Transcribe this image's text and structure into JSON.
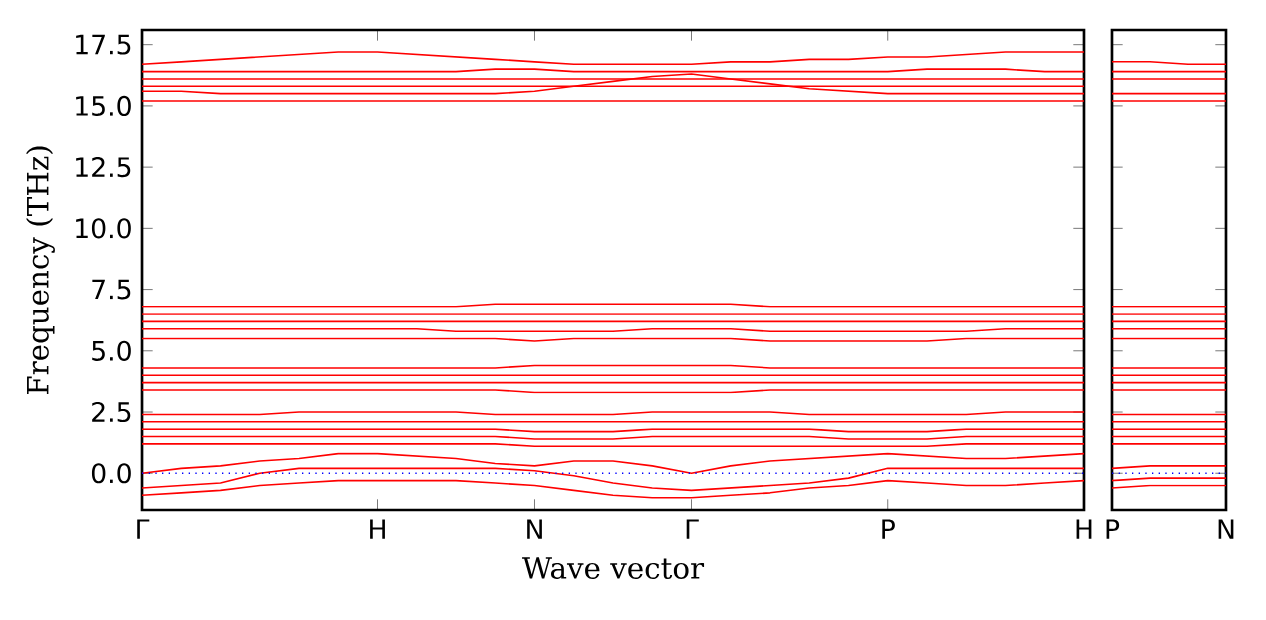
{
  "chart_data": [
    {
      "type": "line",
      "xlabel": "Wave vector",
      "ylabel": "Frequency (THz)",
      "categories": [
        "Γ",
        null,
        null,
        null,
        null,
        null,
        "H",
        null,
        null,
        null,
        "N",
        null,
        null,
        null,
        "Γ",
        null,
        null,
        null,
        null,
        "P",
        null,
        null,
        null,
        null,
        "H"
      ],
      "ylim": [
        -1.5,
        18.1
      ],
      "yticks": [
        {
          "value": 0,
          "label": "0.0"
        },
        {
          "value": 2.5,
          "label": "2.5"
        },
        {
          "value": 5,
          "label": "5.0"
        },
        {
          "value": 7.5,
          "label": "7.5"
        },
        {
          "value": 10,
          "label": "10.0"
        },
        {
          "value": 12.5,
          "label": "12.5"
        },
        {
          "value": 15,
          "label": "15.0"
        },
        {
          "value": 17.5,
          "label": "17.5"
        }
      ],
      "line_style": "solid",
      "marker": "none",
      "ref_lines": [
        {
          "axis": "y",
          "value": 0,
          "color": "#0000ff",
          "line_style": "dotted"
        }
      ],
      "series": [
        {
          "color": "#ff0000",
          "values": [
            16.7,
            16.8,
            16.9,
            17.0,
            17.1,
            17.2,
            17.2,
            17.1,
            17.0,
            16.9,
            16.8,
            16.7,
            16.7,
            16.7,
            16.7,
            16.8,
            16.8,
            16.9,
            16.9,
            17.0,
            17.0,
            17.1,
            17.2,
            17.2,
            17.2
          ]
        },
        {
          "color": "#ff0000",
          "values": [
            16.4,
            16.4,
            16.4,
            16.4,
            16.4,
            16.4,
            16.4,
            16.4,
            16.4,
            16.5,
            16.5,
            16.4,
            16.4,
            16.4,
            16.4,
            16.4,
            16.4,
            16.4,
            16.4,
            16.4,
            16.5,
            16.5,
            16.5,
            16.4,
            16.4
          ]
        },
        {
          "color": "#ff0000",
          "values": [
            16.1,
            16.1,
            16.1,
            16.1,
            16.1,
            16.1,
            16.1,
            16.1,
            16.1,
            16.1,
            16.1,
            16.1,
            16.1,
            16.1,
            16.1,
            16.1,
            16.1,
            16.1,
            16.1,
            16.1,
            16.1,
            16.1,
            16.1,
            16.1,
            16.1
          ]
        },
        {
          "color": "#ff0000",
          "values": [
            15.8,
            15.8,
            15.8,
            15.8,
            15.8,
            15.8,
            15.8,
            15.8,
            15.8,
            15.8,
            15.8,
            15.8,
            15.8,
            15.8,
            15.8,
            15.8,
            15.8,
            15.8,
            15.8,
            15.8,
            15.8,
            15.8,
            15.8,
            15.8,
            15.8
          ]
        },
        {
          "color": "#ff0000",
          "values": [
            15.6,
            15.6,
            15.5,
            15.5,
            15.5,
            15.5,
            15.5,
            15.5,
            15.5,
            15.5,
            15.6,
            15.8,
            16.0,
            16.2,
            16.3,
            16.1,
            15.9,
            15.7,
            15.6,
            15.5,
            15.5,
            15.5,
            15.5,
            15.5,
            15.5
          ]
        },
        {
          "color": "#ff0000",
          "values": [
            15.2,
            15.2,
            15.2,
            15.2,
            15.2,
            15.2,
            15.2,
            15.2,
            15.2,
            15.2,
            15.2,
            15.2,
            15.2,
            15.2,
            15.2,
            15.2,
            15.2,
            15.2,
            15.2,
            15.2,
            15.2,
            15.2,
            15.2,
            15.2,
            15.2
          ]
        },
        {
          "color": "#ff0000",
          "values": [
            6.8,
            6.8,
            6.8,
            6.8,
            6.8,
            6.8,
            6.8,
            6.8,
            6.8,
            6.9,
            6.9,
            6.9,
            6.9,
            6.9,
            6.9,
            6.9,
            6.8,
            6.8,
            6.8,
            6.8,
            6.8,
            6.8,
            6.8,
            6.8,
            6.8
          ]
        },
        {
          "color": "#ff0000",
          "values": [
            6.5,
            6.5,
            6.5,
            6.5,
            6.5,
            6.5,
            6.5,
            6.5,
            6.5,
            6.5,
            6.5,
            6.5,
            6.5,
            6.5,
            6.5,
            6.5,
            6.5,
            6.5,
            6.5,
            6.5,
            6.5,
            6.5,
            6.5,
            6.5,
            6.5
          ]
        },
        {
          "color": "#ff0000",
          "values": [
            6.2,
            6.2,
            6.2,
            6.2,
            6.2,
            6.2,
            6.2,
            6.2,
            6.2,
            6.2,
            6.2,
            6.2,
            6.2,
            6.2,
            6.2,
            6.2,
            6.2,
            6.2,
            6.2,
            6.2,
            6.2,
            6.2,
            6.2,
            6.2,
            6.2
          ]
        },
        {
          "color": "#ff0000",
          "values": [
            5.9,
            5.9,
            5.9,
            5.9,
            5.9,
            5.9,
            5.9,
            5.9,
            5.8,
            5.8,
            5.8,
            5.8,
            5.8,
            5.9,
            5.9,
            5.9,
            5.8,
            5.8,
            5.8,
            5.8,
            5.8,
            5.8,
            5.9,
            5.9,
            5.9
          ]
        },
        {
          "color": "#ff0000",
          "values": [
            5.5,
            5.5,
            5.5,
            5.5,
            5.5,
            5.5,
            5.5,
            5.5,
            5.5,
            5.5,
            5.4,
            5.5,
            5.5,
            5.5,
            5.5,
            5.5,
            5.4,
            5.4,
            5.4,
            5.4,
            5.4,
            5.5,
            5.5,
            5.5,
            5.5
          ]
        },
        {
          "color": "#ff0000",
          "values": [
            4.3,
            4.3,
            4.3,
            4.3,
            4.3,
            4.3,
            4.3,
            4.3,
            4.3,
            4.3,
            4.4,
            4.4,
            4.4,
            4.4,
            4.4,
            4.4,
            4.3,
            4.3,
            4.3,
            4.3,
            4.3,
            4.3,
            4.3,
            4.3,
            4.3
          ]
        },
        {
          "color": "#ff0000",
          "values": [
            4.0,
            4.0,
            4.0,
            4.0,
            4.0,
            4.0,
            4.0,
            4.0,
            4.0,
            4.0,
            4.0,
            4.0,
            4.0,
            4.0,
            4.0,
            4.0,
            4.0,
            4.0,
            4.0,
            4.0,
            4.0,
            4.0,
            4.0,
            4.0,
            4.0
          ]
        },
        {
          "color": "#ff0000",
          "values": [
            3.7,
            3.7,
            3.7,
            3.7,
            3.7,
            3.7,
            3.7,
            3.7,
            3.7,
            3.7,
            3.7,
            3.7,
            3.7,
            3.7,
            3.7,
            3.7,
            3.7,
            3.7,
            3.7,
            3.7,
            3.7,
            3.7,
            3.7,
            3.7,
            3.7
          ]
        },
        {
          "color": "#ff0000",
          "values": [
            3.4,
            3.4,
            3.4,
            3.4,
            3.4,
            3.4,
            3.4,
            3.4,
            3.4,
            3.4,
            3.3,
            3.3,
            3.3,
            3.3,
            3.3,
            3.3,
            3.4,
            3.4,
            3.4,
            3.4,
            3.4,
            3.4,
            3.4,
            3.4,
            3.4
          ]
        },
        {
          "color": "#ff0000",
          "values": [
            2.4,
            2.4,
            2.4,
            2.4,
            2.5,
            2.5,
            2.5,
            2.5,
            2.5,
            2.4,
            2.4,
            2.4,
            2.4,
            2.5,
            2.5,
            2.5,
            2.5,
            2.4,
            2.4,
            2.4,
            2.4,
            2.4,
            2.5,
            2.5,
            2.5
          ]
        },
        {
          "color": "#ff0000",
          "values": [
            2.1,
            2.1,
            2.1,
            2.1,
            2.1,
            2.1,
            2.1,
            2.1,
            2.1,
            2.1,
            2.1,
            2.1,
            2.1,
            2.1,
            2.1,
            2.1,
            2.1,
            2.1,
            2.1,
            2.1,
            2.1,
            2.1,
            2.1,
            2.1,
            2.1
          ]
        },
        {
          "color": "#ff0000",
          "values": [
            1.8,
            1.8,
            1.8,
            1.8,
            1.8,
            1.8,
            1.8,
            1.8,
            1.8,
            1.8,
            1.7,
            1.7,
            1.7,
            1.8,
            1.8,
            1.8,
            1.8,
            1.8,
            1.7,
            1.7,
            1.7,
            1.8,
            1.8,
            1.8,
            1.8
          ]
        },
        {
          "color": "#ff0000",
          "values": [
            1.5,
            1.5,
            1.5,
            1.5,
            1.5,
            1.5,
            1.5,
            1.5,
            1.5,
            1.5,
            1.4,
            1.4,
            1.4,
            1.5,
            1.5,
            1.5,
            1.5,
            1.5,
            1.4,
            1.4,
            1.4,
            1.5,
            1.5,
            1.5,
            1.5
          ]
        },
        {
          "color": "#ff0000",
          "values": [
            1.2,
            1.2,
            1.2,
            1.2,
            1.2,
            1.2,
            1.2,
            1.2,
            1.2,
            1.2,
            1.1,
            1.1,
            1.1,
            1.1,
            1.1,
            1.1,
            1.1,
            1.1,
            1.1,
            1.1,
            1.1,
            1.2,
            1.2,
            1.2,
            1.2
          ]
        },
        {
          "color": "#ff0000",
          "values": [
            0.0,
            0.2,
            0.3,
            0.5,
            0.6,
            0.8,
            0.8,
            0.7,
            0.6,
            0.4,
            0.3,
            0.5,
            0.5,
            0.3,
            0.0,
            0.3,
            0.5,
            0.6,
            0.7,
            0.8,
            0.7,
            0.6,
            0.6,
            0.7,
            0.8
          ]
        },
        {
          "color": "#ff0000",
          "values": [
            -0.6,
            -0.5,
            -0.4,
            0.0,
            0.2,
            0.2,
            0.2,
            0.2,
            0.2,
            0.2,
            0.1,
            -0.1,
            -0.4,
            -0.6,
            -0.7,
            -0.6,
            -0.5,
            -0.4,
            -0.2,
            0.2,
            0.2,
            0.2,
            0.2,
            0.2,
            0.2
          ]
        },
        {
          "color": "#ff0000",
          "values": [
            -0.9,
            -0.8,
            -0.7,
            -0.5,
            -0.4,
            -0.3,
            -0.3,
            -0.3,
            -0.3,
            -0.4,
            -0.5,
            -0.7,
            -0.9,
            -1.0,
            -1.0,
            -0.9,
            -0.8,
            -0.6,
            -0.5,
            -0.3,
            -0.4,
            -0.5,
            -0.5,
            -0.4,
            -0.3
          ]
        }
      ]
    },
    {
      "type": "line",
      "categories": [
        "P",
        null,
        null,
        "N"
      ],
      "ylim": [
        -1.5,
        18.1
      ],
      "yticks": [
        {
          "value": 0,
          "label": null
        },
        {
          "value": 2.5,
          "label": null
        },
        {
          "value": 5,
          "label": null
        },
        {
          "value": 7.5,
          "label": null
        },
        {
          "value": 10,
          "label": null
        },
        {
          "value": 12.5,
          "label": null
        },
        {
          "value": 15,
          "label": null
        },
        {
          "value": 17.5,
          "label": null
        }
      ],
      "tick_labels": "x",
      "line_style": "solid",
      "marker": "none",
      "ref_lines": [
        {
          "axis": "y",
          "value": 0,
          "color": "#0000ff",
          "line_style": "dotted"
        }
      ],
      "series": [
        {
          "color": "#ff0000",
          "values": [
            16.8,
            16.8,
            16.7,
            16.7
          ]
        },
        {
          "color": "#ff0000",
          "values": [
            16.4,
            16.4,
            16.4,
            16.4
          ]
        },
        {
          "color": "#ff0000",
          "values": [
            16.1,
            16.1,
            16.1,
            16.1
          ]
        },
        {
          "color": "#ff0000",
          "values": [
            15.5,
            15.5,
            15.5,
            15.5
          ]
        },
        {
          "color": "#ff0000",
          "values": [
            15.2,
            15.2,
            15.2,
            15.2
          ]
        },
        {
          "color": "#ff0000",
          "values": [
            6.8,
            6.8,
            6.8,
            6.8
          ]
        },
        {
          "color": "#ff0000",
          "values": [
            6.5,
            6.5,
            6.5,
            6.5
          ]
        },
        {
          "color": "#ff0000",
          "values": [
            6.2,
            6.2,
            6.2,
            6.2
          ]
        },
        {
          "color": "#ff0000",
          "values": [
            5.9,
            5.9,
            5.9,
            5.9
          ]
        },
        {
          "color": "#ff0000",
          "values": [
            5.5,
            5.5,
            5.5,
            5.5
          ]
        },
        {
          "color": "#ff0000",
          "values": [
            4.3,
            4.3,
            4.3,
            4.3
          ]
        },
        {
          "color": "#ff0000",
          "values": [
            4.0,
            4.0,
            4.0,
            4.0
          ]
        },
        {
          "color": "#ff0000",
          "values": [
            3.7,
            3.7,
            3.7,
            3.7
          ]
        },
        {
          "color": "#ff0000",
          "values": [
            3.4,
            3.4,
            3.4,
            3.4
          ]
        },
        {
          "color": "#ff0000",
          "values": [
            2.4,
            2.4,
            2.4,
            2.4
          ]
        },
        {
          "color": "#ff0000",
          "values": [
            2.1,
            2.1,
            2.1,
            2.1
          ]
        },
        {
          "color": "#ff0000",
          "values": [
            1.8,
            1.8,
            1.8,
            1.8
          ]
        },
        {
          "color": "#ff0000",
          "values": [
            1.5,
            1.5,
            1.5,
            1.5
          ]
        },
        {
          "color": "#ff0000",
          "values": [
            1.2,
            1.2,
            1.2,
            1.2
          ]
        },
        {
          "color": "#ff0000",
          "values": [
            0.2,
            0.3,
            0.3,
            0.3
          ]
        },
        {
          "color": "#ff0000",
          "values": [
            -0.3,
            -0.2,
            -0.2,
            -0.2
          ]
        },
        {
          "color": "#ff0000",
          "values": [
            -0.6,
            -0.5,
            -0.5,
            -0.5
          ]
        }
      ]
    }
  ]
}
